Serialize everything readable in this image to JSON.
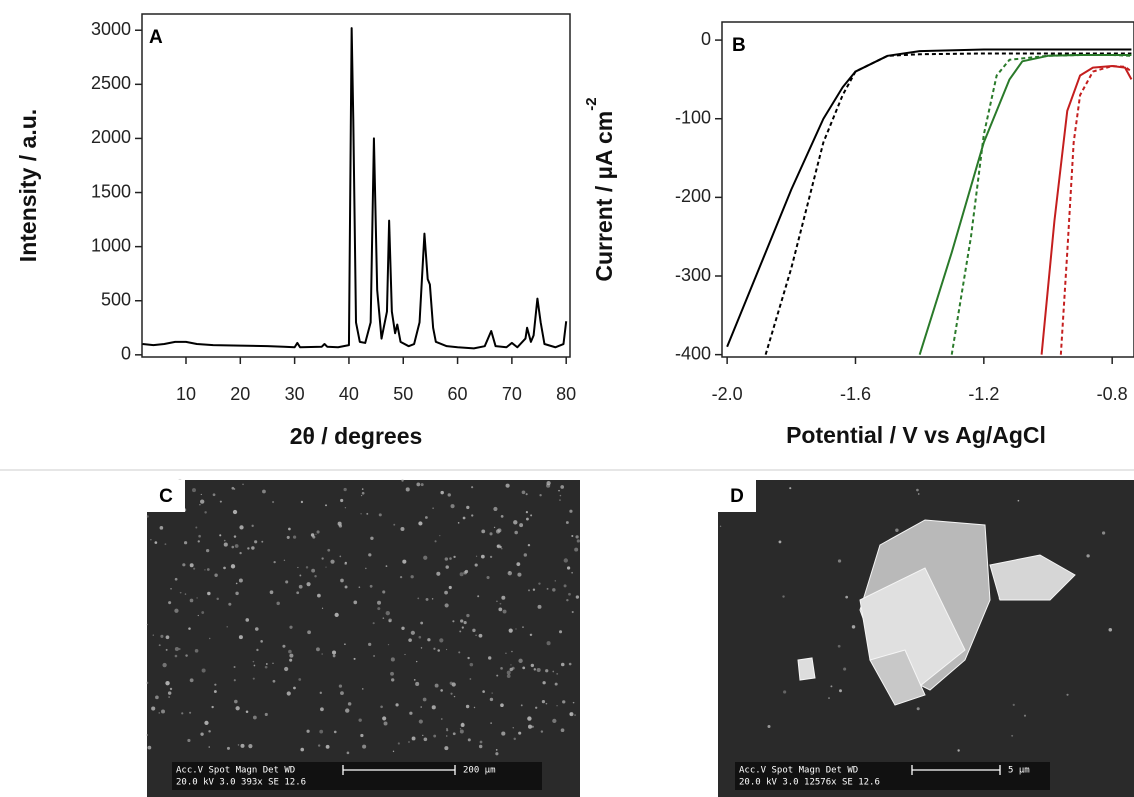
{
  "chart_data": [
    {
      "type": "line",
      "panel_label": "A",
      "x_label": "2θ / degrees",
      "y_label": "Intensity / a.u.",
      "color": "#000000",
      "x": [
        2,
        4,
        6,
        8,
        10,
        12,
        15,
        20,
        25,
        28,
        30,
        30.5,
        31,
        35,
        35.5,
        36,
        38,
        40,
        40.5,
        40.8,
        41.3,
        42,
        43,
        44,
        44.6,
        45.2,
        46,
        47,
        47.4,
        47.9,
        48.5,
        48.9,
        49.5,
        51,
        52,
        53,
        53.9,
        54.5,
        54.9,
        55.5,
        56,
        58,
        60,
        63,
        65,
        66.2,
        67,
        69,
        70,
        71,
        72.5,
        72.8,
        73.5,
        74,
        74.7,
        75.3,
        76,
        78,
        79.5,
        80
      ],
      "values": [
        100,
        90,
        100,
        120,
        120,
        100,
        90,
        85,
        80,
        75,
        70,
        110,
        70,
        75,
        100,
        75,
        70,
        90,
        3020,
        2180,
        300,
        120,
        110,
        300,
        2000,
        600,
        150,
        400,
        1240,
        400,
        200,
        280,
        120,
        80,
        100,
        300,
        1120,
        700,
        650,
        250,
        120,
        80,
        70,
        60,
        80,
        220,
        80,
        70,
        110,
        70,
        150,
        250,
        120,
        180,
        520,
        300,
        100,
        70,
        100,
        310
      ],
      "xlim": [
        1.9,
        80.7
      ],
      "ylim": [
        -20,
        3150
      ],
      "xticks": [
        10,
        20,
        30,
        40,
        50,
        60,
        70,
        80
      ],
      "yticks": [
        0,
        500,
        1000,
        1500,
        2000,
        2500,
        3000
      ]
    },
    {
      "type": "line",
      "panel_label": "B",
      "x_label": "Potential / V vs Ag/AgCl",
      "y_label": "Current / µA cm",
      "y_label_sup": "-2",
      "xlim": [
        -2.016,
        -0.732
      ],
      "ylim": [
        -403,
        23
      ],
      "xticks": [
        {
          "value": -2,
          "label": "-2.0"
        },
        -1.6,
        -1.2,
        -0.8
      ],
      "yticks": [
        0,
        -100,
        -200,
        -300,
        -400
      ],
      "series": [
        {
          "color": "#000000",
          "dash": false,
          "x": [
            -2.0,
            -1.9,
            -1.8,
            -1.7,
            -1.64,
            -1.6,
            -1.5,
            -1.4,
            -1.2,
            -1.0,
            -0.8,
            -0.74
          ],
          "values": [
            -390,
            -290,
            -190,
            -100,
            -60,
            -40,
            -20,
            -14,
            -12,
            -12,
            -12,
            -12
          ]
        },
        {
          "color": "#000000",
          "dash": true,
          "x": [
            -1.88,
            -1.8,
            -1.7,
            -1.64,
            -1.6,
            -1.5,
            -1.4,
            -1.2,
            -1.0,
            -0.8,
            -0.74
          ],
          "values": [
            -400,
            -290,
            -130,
            -70,
            -40,
            -20,
            -18,
            -17,
            -17,
            -17,
            -17
          ]
        },
        {
          "color": "#2a7a2a",
          "dash": false,
          "x": [
            -1.4,
            -1.3,
            -1.2,
            -1.12,
            -1.08,
            -1.0,
            -0.9,
            -0.8,
            -0.74
          ],
          "values": [
            -400,
            -270,
            -130,
            -50,
            -27,
            -20,
            -19,
            -19,
            -19
          ]
        },
        {
          "color": "#2a7a2a",
          "dash": true,
          "x": [
            -1.3,
            -1.24,
            -1.2,
            -1.16,
            -1.12,
            -1.0,
            -0.9,
            -0.8,
            -0.74
          ],
          "values": [
            -400,
            -250,
            -120,
            -45,
            -25,
            -20,
            -19,
            -19,
            -20
          ]
        },
        {
          "color": "#c41e1e",
          "dash": false,
          "x": [
            -1.02,
            -0.98,
            -0.94,
            -0.9,
            -0.86,
            -0.8,
            -0.76,
            -0.74
          ],
          "values": [
            -400,
            -230,
            -90,
            -45,
            -35,
            -33,
            -35,
            -50
          ]
        },
        {
          "color": "#c41e1e",
          "dash": true,
          "x": [
            -0.96,
            -0.94,
            -0.92,
            -0.9,
            -0.86,
            -0.8,
            -0.76,
            -0.74
          ],
          "values": [
            -400,
            -270,
            -130,
            -70,
            -40,
            -33,
            -34,
            -40
          ]
        }
      ]
    }
  ],
  "images": [
    {
      "label": "C",
      "info_header": "Acc.V  Spot Magn    Det  WD",
      "info_values": "20.0 kV 3.0   393x    SE   12.6",
      "scale": "200 µm"
    },
    {
      "label": "D",
      "info_header": "Acc.V  Spot Magn    Det  WD",
      "info_values": "20.0 kV 3.0   12576x  SE   12.6",
      "scale": "5 µm"
    }
  ]
}
